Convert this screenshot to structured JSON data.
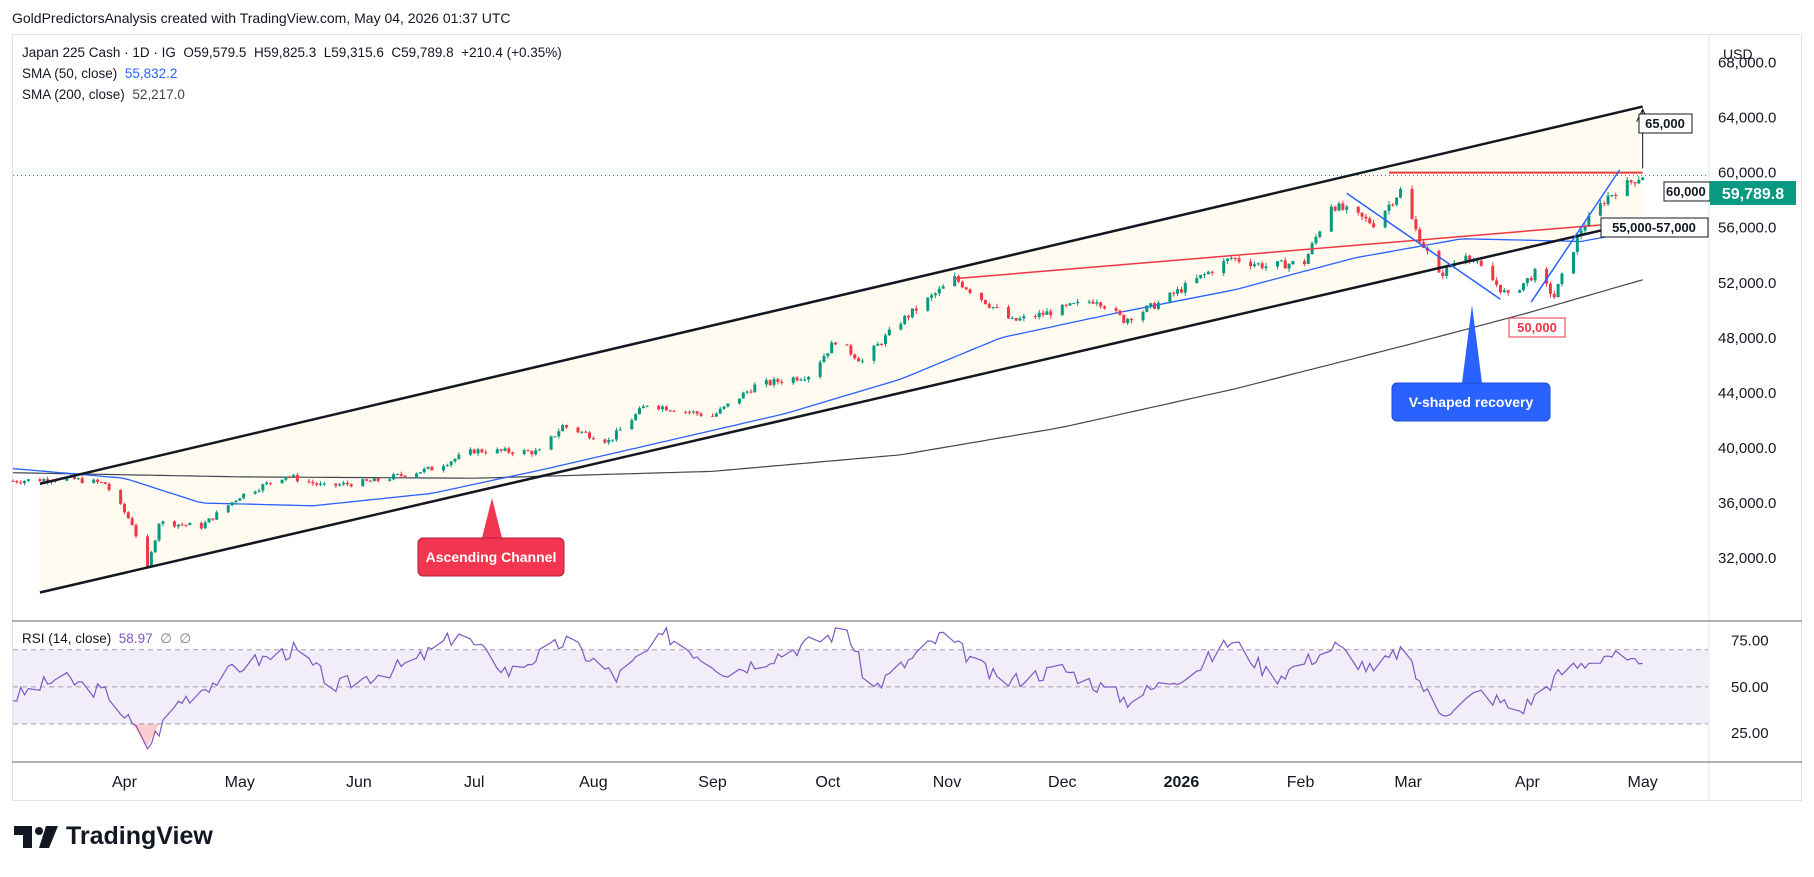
{
  "caption": "GoldPredictorsAnalysis created with TradingView.com, May 04, 2026 01:37 UTC",
  "legend": {
    "symbol": "Japan 225 Cash · 1D · IG",
    "o_label": "O",
    "o": "59,579.5",
    "h_label": "H",
    "h": "59,825.3",
    "l_label": "L",
    "l": "59,315.6",
    "c_label": "C",
    "c": "59,789.8",
    "change": "+210.4 (+0.35%)",
    "sma50_label": "SMA (50, close)",
    "sma50_value": "55,832.2",
    "sma200_label": "SMA (200, close)",
    "sma200_value": "52,217.0"
  },
  "rsi_legend": {
    "label": "RSI (14, close)",
    "value": "58.97",
    "extra1": "∅",
    "extra2": "∅"
  },
  "currency": "USD",
  "last_price_label": "59,789.8",
  "brand": "TradingView",
  "colors": {
    "up": "#089981",
    "down": "#f23645",
    "sma50": "#2962ff",
    "sma200": "#434651",
    "channel": "#131722",
    "resistance": "#f23645",
    "rsi": "#7e57c2",
    "accent_blue": "#2962ff"
  },
  "annotations": {
    "ascending_channel": "Ascending Channel",
    "v_recovery": "V-shaped recovery",
    "level_65000": "65,000",
    "level_60000": "60,000",
    "level_55_57": "55,000-57,000",
    "level_50000": "50,000"
  },
  "chart_data": {
    "type": "candlestick",
    "title": "Japan 225 Cash · 1D · IG",
    "y_axis": {
      "ticks": [
        32000,
        36000,
        40000,
        44000,
        48000,
        52000,
        56000,
        60000,
        64000,
        68000
      ],
      "tick_labels": [
        "32,000.0",
        "36,000.0",
        "40,000.0",
        "44,000.0",
        "48,000.0",
        "52,000.0",
        "56,000.0",
        "60,000.0",
        "64,000.0",
        "68,000.0"
      ],
      "range": [
        27500,
        70000
      ]
    },
    "x_axis": {
      "ticks": [
        "Apr",
        "May",
        "Jun",
        "Jul",
        "Aug",
        "Sep",
        "Oct",
        "Nov",
        "Dec",
        "2026",
        "Feb",
        "Mar",
        "Apr",
        "May"
      ],
      "range": [
        "2025-03-03",
        "2026-05-18"
      ]
    },
    "series": [
      {
        "name": "Japan 225 Cash",
        "type": "candlestick",
        "approx_close_path": [
          {
            "x": "2025-03-03",
            "y": 37600
          },
          {
            "x": "2025-03-17",
            "y": 37800
          },
          {
            "x": "2025-03-27",
            "y": 37400
          },
          {
            "x": "2025-04-03",
            "y": 34500
          },
          {
            "x": "2025-04-07",
            "y": 31200
          },
          {
            "x": "2025-04-10",
            "y": 34600
          },
          {
            "x": "2025-04-21",
            "y": 34300
          },
          {
            "x": "2025-05-01",
            "y": 36500
          },
          {
            "x": "2025-05-13",
            "y": 38000
          },
          {
            "x": "2025-05-23",
            "y": 37200
          },
          {
            "x": "2025-06-05",
            "y": 37600
          },
          {
            "x": "2025-06-20",
            "y": 38500
          },
          {
            "x": "2025-07-01",
            "y": 39800
          },
          {
            "x": "2025-07-18",
            "y": 39700
          },
          {
            "x": "2025-07-24",
            "y": 41600
          },
          {
            "x": "2025-08-05",
            "y": 40500
          },
          {
            "x": "2025-08-15",
            "y": 43200
          },
          {
            "x": "2025-09-01",
            "y": 42300
          },
          {
            "x": "2025-09-12",
            "y": 44500
          },
          {
            "x": "2025-09-26",
            "y": 45300
          },
          {
            "x": "2025-10-03",
            "y": 47800
          },
          {
            "x": "2025-10-10",
            "y": 46300
          },
          {
            "x": "2025-10-20",
            "y": 49200
          },
          {
            "x": "2025-11-03",
            "y": 52300
          },
          {
            "x": "2025-11-18",
            "y": 49200
          },
          {
            "x": "2025-11-27",
            "y": 49800
          },
          {
            "x": "2025-12-10",
            "y": 50800
          },
          {
            "x": "2025-12-17",
            "y": 49300
          },
          {
            "x": "2025-12-26",
            "y": 50500
          },
          {
            "x": "2026-01-14",
            "y": 53800
          },
          {
            "x": "2026-01-23",
            "y": 53200
          },
          {
            "x": "2026-02-02",
            "y": 53500
          },
          {
            "x": "2026-02-09",
            "y": 57700
          },
          {
            "x": "2026-02-20",
            "y": 56300
          },
          {
            "x": "2026-02-27",
            "y": 58700
          },
          {
            "x": "2026-03-03",
            "y": 55800
          },
          {
            "x": "2026-03-09",
            "y": 52500
          },
          {
            "x": "2026-03-16",
            "y": 54200
          },
          {
            "x": "2026-03-27",
            "y": 51000
          },
          {
            "x": "2026-04-03",
            "y": 52700
          },
          {
            "x": "2026-04-08",
            "y": 51000
          },
          {
            "x": "2026-04-15",
            "y": 55900
          },
          {
            "x": "2026-04-22",
            "y": 58300
          },
          {
            "x": "2026-04-29",
            "y": 59500
          },
          {
            "x": "2026-05-01",
            "y": 59789.8
          }
        ]
      },
      {
        "name": "SMA (50, close)",
        "type": "line",
        "points": [
          {
            "x": "2025-03-03",
            "y": 38500
          },
          {
            "x": "2025-04-01",
            "y": 37800
          },
          {
            "x": "2025-04-21",
            "y": 36000
          },
          {
            "x": "2025-05-20",
            "y": 35800
          },
          {
            "x": "2025-06-20",
            "y": 36700
          },
          {
            "x": "2025-07-20",
            "y": 38500
          },
          {
            "x": "2025-08-20",
            "y": 40500
          },
          {
            "x": "2025-09-20",
            "y": 42500
          },
          {
            "x": "2025-10-20",
            "y": 45000
          },
          {
            "x": "2025-11-15",
            "y": 48000
          },
          {
            "x": "2025-12-15",
            "y": 49800
          },
          {
            "x": "2026-01-15",
            "y": 51500
          },
          {
            "x": "2026-02-15",
            "y": 53800
          },
          {
            "x": "2026-03-15",
            "y": 55200
          },
          {
            "x": "2026-04-15",
            "y": 55000
          },
          {
            "x": "2026-05-01",
            "y": 55832.2
          }
        ]
      },
      {
        "name": "SMA (200, close)",
        "type": "line",
        "points": [
          {
            "x": "2025-03-03",
            "y": 38200
          },
          {
            "x": "2025-05-01",
            "y": 37900
          },
          {
            "x": "2025-07-01",
            "y": 37800
          },
          {
            "x": "2025-09-01",
            "y": 38300
          },
          {
            "x": "2025-10-20",
            "y": 39500
          },
          {
            "x": "2025-12-01",
            "y": 41500
          },
          {
            "x": "2026-01-15",
            "y": 44300
          },
          {
            "x": "2026-03-01",
            "y": 47500
          },
          {
            "x": "2026-04-01",
            "y": 49800
          },
          {
            "x": "2026-05-01",
            "y": 52217.0
          }
        ]
      }
    ],
    "rsi": {
      "name": "RSI (14, close)",
      "levels": [
        30,
        50,
        70
      ],
      "tick_labels": [
        "25.00",
        "50.00",
        "75.00"
      ],
      "range": [
        10,
        85
      ],
      "points": [
        {
          "x": "2025-03-03",
          "y": 44
        },
        {
          "x": "2025-03-15",
          "y": 55
        },
        {
          "x": "2025-03-28",
          "y": 46
        },
        {
          "x": "2025-04-07",
          "y": 18
        },
        {
          "x": "2025-04-15",
          "y": 42
        },
        {
          "x": "2025-05-02",
          "y": 62
        },
        {
          "x": "2025-05-15",
          "y": 70
        },
        {
          "x": "2025-05-26",
          "y": 50
        },
        {
          "x": "2025-06-15",
          "y": 63
        },
        {
          "x": "2025-06-27",
          "y": 79
        },
        {
          "x": "2025-07-10",
          "y": 58
        },
        {
          "x": "2025-07-25",
          "y": 75
        },
        {
          "x": "2025-08-07",
          "y": 55
        },
        {
          "x": "2025-08-20",
          "y": 78
        },
        {
          "x": "2025-09-05",
          "y": 58
        },
        {
          "x": "2025-09-20",
          "y": 69
        },
        {
          "x": "2025-10-06",
          "y": 81
        },
        {
          "x": "2025-10-12",
          "y": 48
        },
        {
          "x": "2025-10-31",
          "y": 78
        },
        {
          "x": "2025-11-15",
          "y": 52
        },
        {
          "x": "2025-12-01",
          "y": 60
        },
        {
          "x": "2025-12-18",
          "y": 43
        },
        {
          "x": "2026-01-05",
          "y": 60
        },
        {
          "x": "2026-01-14",
          "y": 75
        },
        {
          "x": "2026-01-25",
          "y": 55
        },
        {
          "x": "2026-02-10",
          "y": 72
        },
        {
          "x": "2026-02-20",
          "y": 58
        },
        {
          "x": "2026-02-27",
          "y": 70
        },
        {
          "x": "2026-03-09",
          "y": 36
        },
        {
          "x": "2026-03-20",
          "y": 47
        },
        {
          "x": "2026-03-30",
          "y": 37
        },
        {
          "x": "2026-04-10",
          "y": 58
        },
        {
          "x": "2026-04-22",
          "y": 68
        },
        {
          "x": "2026-05-01",
          "y": 58.97
        }
      ]
    },
    "drawings": {
      "channel_upper": [
        {
          "x": "2025-03-10",
          "y": 37400
        },
        {
          "x": "2026-05-01",
          "y": 64800
        }
      ],
      "channel_lower": [
        {
          "x": "2025-03-10",
          "y": 29500
        },
        {
          "x": "2026-05-01",
          "y": 56500
        }
      ],
      "resistance_60000": [
        {
          "x": "2026-02-24",
          "y": 60000
        },
        {
          "x": "2026-05-01",
          "y": 60000
        }
      ],
      "red_trend": [
        {
          "x": "2025-11-03",
          "y": 52300
        },
        {
          "x": "2026-04-20",
          "y": 56200
        }
      ],
      "last_price": 59789.8
    },
    "legend": "top-left",
    "grid": false
  }
}
